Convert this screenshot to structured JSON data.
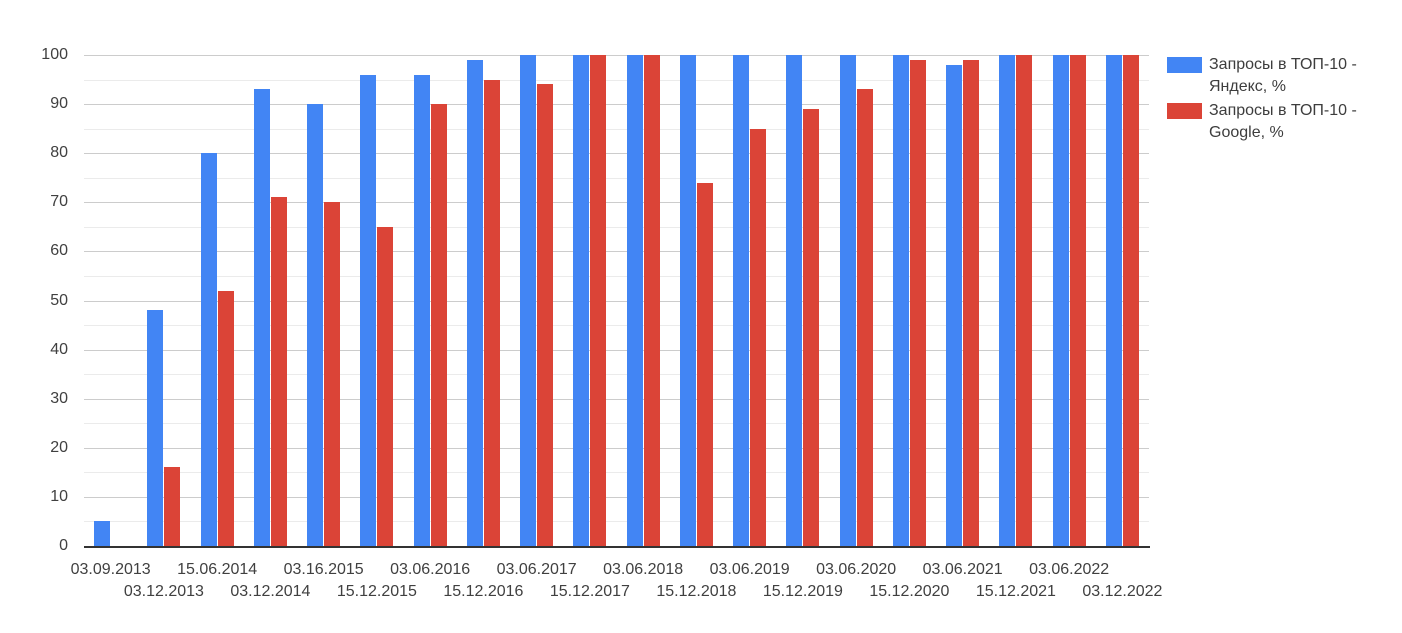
{
  "chart_data": {
    "type": "bar",
    "title": "",
    "xlabel": "",
    "ylabel": "",
    "categories": [
      "03.09.2013",
      "03.12.2013",
      "15.06.2014",
      "03.12.2014",
      "03.16.2015",
      "15.12.2015",
      "03.06.2016",
      "15.12.2016",
      "03.06.2017",
      "15.12.2017",
      "03.06.2018",
      "15.12.2018",
      "03.06.2019",
      "15.12.2019",
      "03.06.2020",
      "15.12.2020",
      "03.06.2021",
      "15.12.2021",
      "03.06.2022",
      "03.12.2022"
    ],
    "series": [
      {
        "name": "Запросы в ТОП-10 - Яндекс, %",
        "color": "#4285f4",
        "values": [
          5,
          48,
          80,
          93,
          90,
          96,
          96,
          99,
          100,
          100,
          100,
          100,
          100,
          100,
          100,
          100,
          98,
          100,
          100,
          100
        ]
      },
      {
        "name": "Запросы в ТОП-10 - Google, %",
        "color": "#db4437",
        "values": [
          0,
          16,
          52,
          71,
          70,
          65,
          90,
          95,
          94,
          100,
          100,
          74,
          85,
          89,
          93,
          99,
          99,
          100,
          100,
          100
        ]
      }
    ],
    "ylim": [
      0,
      100
    ],
    "yticks": [
      0,
      10,
      20,
      30,
      40,
      50,
      60,
      70,
      80,
      90,
      100
    ],
    "minor_gridlines": true,
    "grid": true,
    "legend_position": "right",
    "x_labels_staggered": true
  },
  "legend": {
    "items": [
      {
        "line1": "Запросы в ТОП-10 -",
        "line2": "Яндекс, %",
        "color": "#4285f4"
      },
      {
        "line1": "Запросы в ТОП-10 -",
        "line2": "Google, %",
        "color": "#db4437"
      }
    ]
  },
  "colors": {
    "background": "#ffffff",
    "axis_text": "#404040",
    "baseline": "#333333",
    "gridline_major": "#cccccc",
    "gridline_minor": "#ebebeb"
  }
}
